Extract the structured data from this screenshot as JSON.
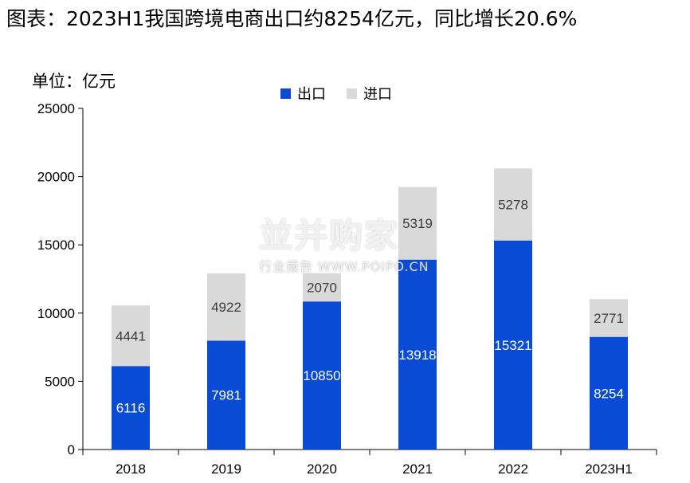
{
  "title": "图表：2023H1我国跨境电商出口约8254亿元，同比增长20.6%",
  "unit_label": "单位：亿元",
  "watermark": {
    "main": "並并购家",
    "sub": "行业报告 WWW.POIPO.CN"
  },
  "colors": {
    "export": "#0A4BD6",
    "import": "#D9D9D9"
  },
  "chart_data": {
    "type": "bar",
    "stacked": true,
    "categories": [
      "2018",
      "2019",
      "2020",
      "2021",
      "2022",
      "2023H1"
    ],
    "series": [
      {
        "name": "出口",
        "values": [
          6116,
          7981,
          10850,
          13918,
          15321,
          8254
        ]
      },
      {
        "name": "进口",
        "values": [
          4441,
          4922,
          2070,
          5319,
          5278,
          2771
        ]
      }
    ],
    "value_labels": {
      "出口": [
        "6116",
        "7981",
        "10850",
        "13918",
        "15321",
        "8254"
      ],
      "进口": [
        "4441",
        "4922",
        "2070",
        "5319",
        "5278",
        "2771"
      ]
    },
    "ylim": [
      0,
      25000
    ],
    "yticks": [
      "0",
      "5000",
      "10000",
      "15000",
      "20000",
      "25000"
    ],
    "ytick_values": [
      0,
      5000,
      10000,
      15000,
      20000,
      25000
    ],
    "legend_position": "top-center",
    "grid": false
  }
}
